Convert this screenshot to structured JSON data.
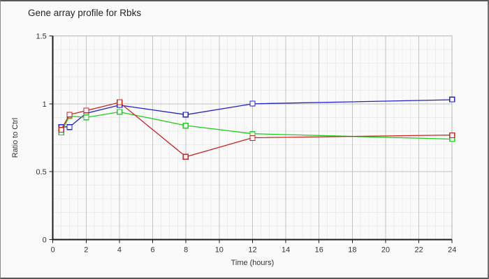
{
  "chart_data": {
    "type": "line",
    "title": "Gene array profile for Rbks",
    "xlabel": "Time (hours)",
    "ylabel": "Ratio to Ctrl",
    "x": [
      0.5,
      1,
      2,
      4,
      8,
      12,
      24
    ],
    "series": [
      {
        "name": "blue",
        "color": "#2121cd",
        "values": [
          0.83,
          0.83,
          0.93,
          0.99,
          0.92,
          1.0,
          1.03
        ]
      },
      {
        "name": "green",
        "color": "#21cd21",
        "values": [
          0.79,
          0.91,
          0.9,
          0.94,
          0.84,
          0.78,
          0.74
        ]
      },
      {
        "name": "red",
        "color": "#cd2121",
        "values": [
          0.81,
          0.92,
          0.95,
          1.01,
          0.61,
          0.75,
          0.77
        ]
      }
    ],
    "xlim": [
      0,
      24
    ],
    "ylim": [
      0,
      1.5
    ],
    "x_ticks": [
      0,
      2,
      4,
      6,
      8,
      10,
      12,
      14,
      16,
      18,
      20,
      22,
      24
    ],
    "y_ticks": [
      0,
      0.5,
      1,
      1.5
    ],
    "x_minor_step": 0.5,
    "y_minor_step": 0.1,
    "grid": true,
    "legend": "none",
    "marker": "open-square"
  },
  "colors": {
    "background": "#fafafa",
    "grid_major": "#c3c3c3",
    "grid_minor": "#ececec",
    "frame": "#b5b5b5",
    "axis": "#1c1c1c",
    "text": "#333333"
  }
}
